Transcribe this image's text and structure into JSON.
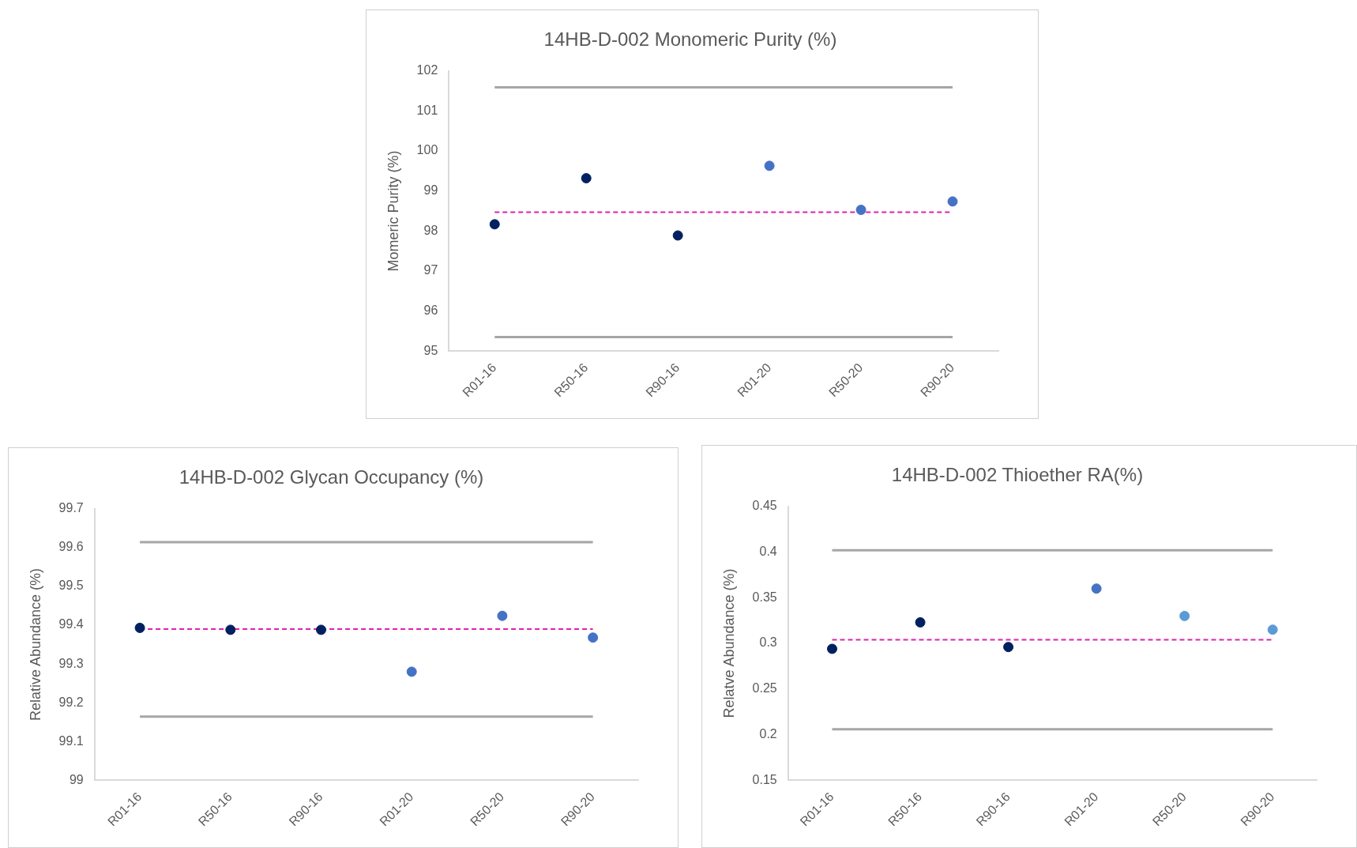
{
  "chart_data": [
    {
      "type": "scatter",
      "title": "14HB-D-002 Monomeric Purity (%)",
      "ylabel": "Momeric Purity (%)",
      "categories": [
        "R01-16",
        "R50-16",
        "R90-16",
        "R01-20",
        "R50-20",
        "R90-20"
      ],
      "values": [
        98.17,
        99.32,
        97.89,
        99.63,
        98.53,
        98.74
      ],
      "colors": [
        "#002060",
        "#002060",
        "#002060",
        "#4472c4",
        "#4472c4",
        "#4472c4"
      ],
      "marker": "circle",
      "ylim": [
        95,
        102
      ],
      "yticks": [
        95,
        96,
        97,
        98,
        99,
        100,
        101,
        102
      ],
      "ref_lines": [
        {
          "axis": "y",
          "value": 101.59,
          "color": "#a6a6a6",
          "line_style": "solid"
        },
        {
          "axis": "y",
          "value": 95.35,
          "color": "#a6a6a6",
          "line_style": "solid"
        },
        {
          "axis": "y",
          "value": 98.47,
          "color": "#e020b0",
          "line_style": "dashed"
        }
      ]
    },
    {
      "type": "scatter",
      "title": "14HB-D-002 Glycan Occupancy (%)",
      "ylabel": "Relative Abundance (%)",
      "categories": [
        "R01-16",
        "R50-16",
        "R90-16",
        "R01-20",
        "R50-20",
        "R90-20"
      ],
      "values": [
        99.393,
        99.388,
        99.388,
        99.28,
        99.424,
        99.368
      ],
      "colors": [
        "#002060",
        "#002060",
        "#002060",
        "#4472c4",
        "#4472c4",
        "#4472c4"
      ],
      "marker": "circle",
      "ylim": [
        99,
        99.7
      ],
      "yticks": [
        99,
        99.1,
        99.2,
        99.3,
        99.4,
        99.5,
        99.6,
        99.7
      ],
      "ref_lines": [
        {
          "axis": "y",
          "value": 99.614,
          "color": "#a6a6a6",
          "line_style": "solid"
        },
        {
          "axis": "y",
          "value": 99.164,
          "color": "#a6a6a6",
          "line_style": "solid"
        },
        {
          "axis": "y",
          "value": 99.39,
          "color": "#e020b0",
          "line_style": "dashed"
        }
      ]
    },
    {
      "type": "scatter",
      "title": "14HB-D-002 Thioether RA(%)",
      "ylabel": "Relatve Abundance (%)",
      "categories": [
        "R01-16",
        "R50-16",
        "R90-16",
        "R01-20",
        "R50-20",
        "R90-20"
      ],
      "values": [
        0.294,
        0.323,
        0.296,
        0.36,
        0.33,
        0.315
      ],
      "colors": [
        "#002060",
        "#002060",
        "#002060",
        "#4472c4",
        "#5b9bd5",
        "#5b9bd5"
      ],
      "marker": "circle",
      "ylim": [
        0.15,
        0.45
      ],
      "yticks": [
        0.15,
        0.2,
        0.25,
        0.3,
        0.35,
        0.4,
        0.45
      ],
      "ref_lines": [
        {
          "axis": "y",
          "value": 0.402,
          "color": "#a6a6a6",
          "line_style": "solid"
        },
        {
          "axis": "y",
          "value": 0.206,
          "color": "#a6a6a6",
          "line_style": "solid"
        },
        {
          "axis": "y",
          "value": 0.304,
          "color": "#e020b0",
          "line_style": "dashed"
        }
      ]
    }
  ]
}
